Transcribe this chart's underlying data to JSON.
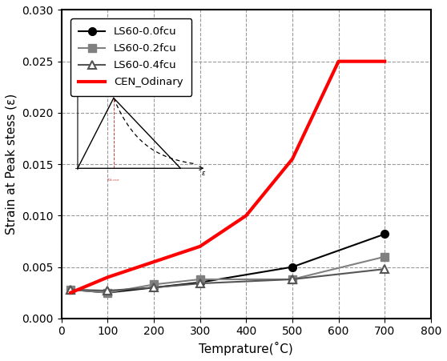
{
  "title": "",
  "xlabel": "Temprature(˚C)",
  "ylabel": "Strain at Peak stess (ε)",
  "xlim": [
    0,
    800
  ],
  "ylim": [
    0.0,
    0.03
  ],
  "xticks": [
    0,
    100,
    200,
    300,
    400,
    500,
    600,
    700,
    800
  ],
  "yticks": [
    0.0,
    0.005,
    0.01,
    0.015,
    0.02,
    0.025,
    0.03
  ],
  "series": [
    {
      "label": "LS60-0.0fcu",
      "x": [
        20,
        100,
        200,
        300,
        500,
        700
      ],
      "y": [
        0.0028,
        0.0025,
        0.003,
        0.0035,
        0.005,
        0.0082
      ],
      "color": "#000000",
      "marker": "o",
      "markersize": 7,
      "linewidth": 1.5,
      "linestyle": "-"
    },
    {
      "label": "LS60-0.2fcu",
      "x": [
        20,
        100,
        200,
        300,
        500,
        700
      ],
      "y": [
        0.0028,
        0.0025,
        0.0033,
        0.0038,
        0.0038,
        0.006
      ],
      "color": "#808080",
      "marker": "s",
      "markersize": 7,
      "linewidth": 1.5,
      "linestyle": "-"
    },
    {
      "label": "LS60-0.4fcu",
      "x": [
        20,
        100,
        200,
        300,
        500,
        700
      ],
      "y": [
        0.0028,
        0.0027,
        0.003,
        0.0034,
        0.0038,
        0.0048
      ],
      "color": "#555555",
      "marker": "^",
      "markersize": 7,
      "linewidth": 1.5,
      "linestyle": "-",
      "markerfacecolor": "white"
    },
    {
      "label": "CEN_Odinary",
      "x": [
        20,
        100,
        200,
        300,
        400,
        500,
        600,
        700
      ],
      "y": [
        0.0025,
        0.004,
        0.0055,
        0.007,
        0.01,
        0.0155,
        0.025,
        0.025
      ],
      "color": "#ff0000",
      "marker": null,
      "markersize": 0,
      "linewidth": 3.0,
      "linestyle": "-"
    }
  ],
  "grid_color": "#999999",
  "background_color": "#ffffff",
  "legend_fontsize": 9.5,
  "axis_fontsize": 11,
  "tick_fontsize": 10
}
